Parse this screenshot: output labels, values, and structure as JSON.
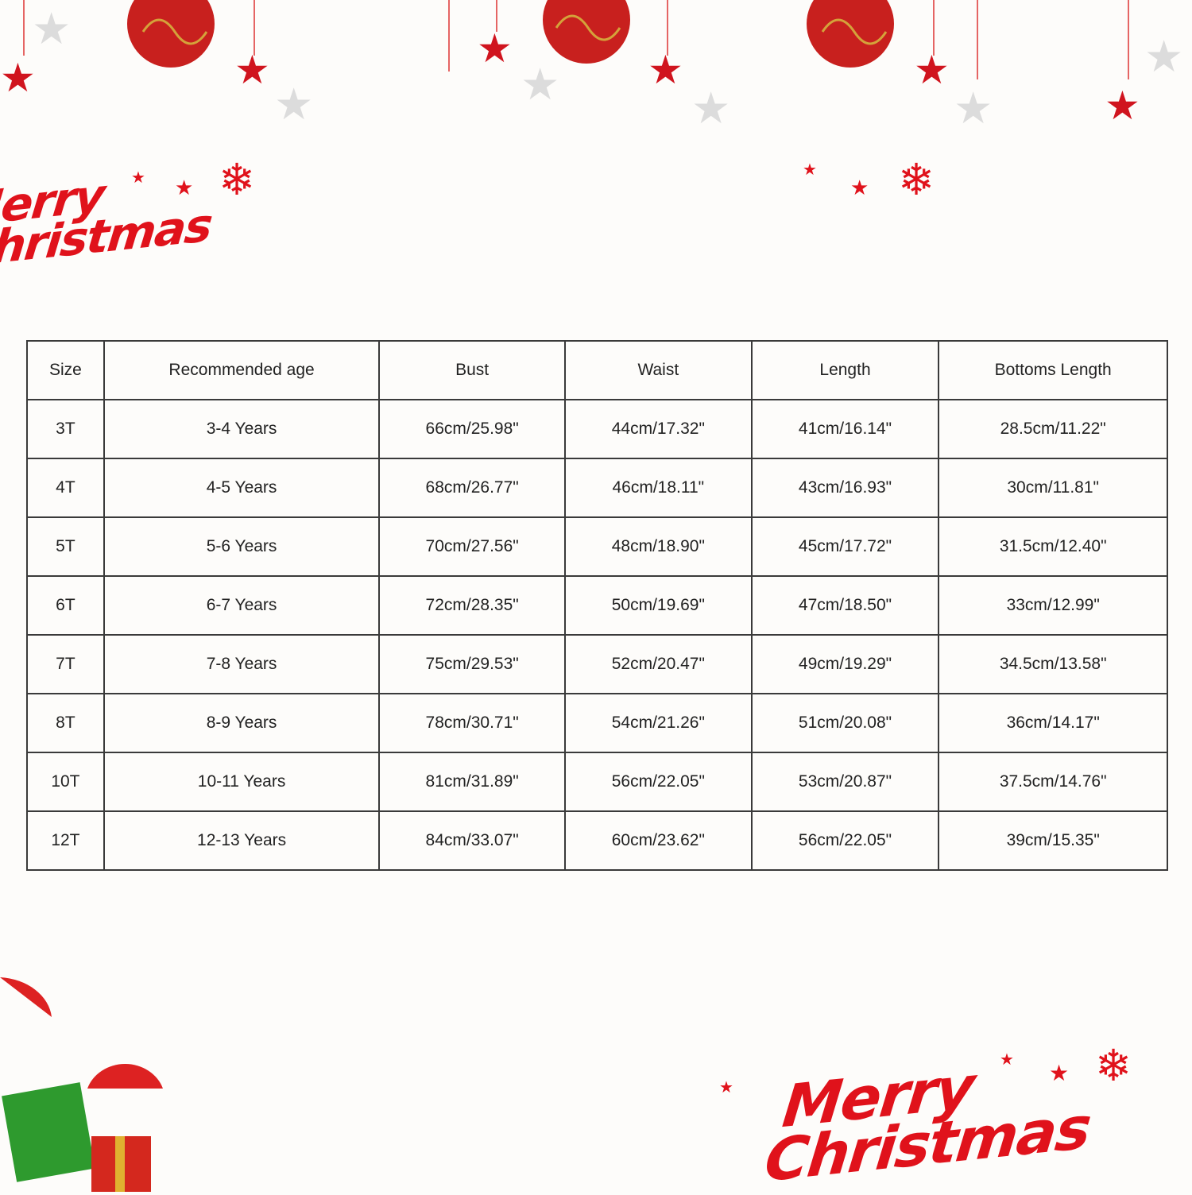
{
  "greetings": {
    "top_left": [
      "Merry",
      "Christmas"
    ],
    "bottom_right": [
      "Merry",
      "Christmas"
    ]
  },
  "colors": {
    "accent_red": "#e0121b",
    "ornament_red": "#c8201e",
    "gold": "#d4a23a",
    "border": "#3a3a3a"
  },
  "size_table": {
    "headers": [
      "Size",
      "Recommended age",
      "Bust",
      "Waist",
      "Length",
      "Bottoms Length"
    ],
    "rows": [
      [
        "3T",
        "3-4 Years",
        "66cm/25.98\"",
        "44cm/17.32\"",
        "41cm/16.14\"",
        "28.5cm/11.22\""
      ],
      [
        "4T",
        "4-5 Years",
        "68cm/26.77\"",
        "46cm/18.11\"",
        "43cm/16.93\"",
        "30cm/11.81\""
      ],
      [
        "5T",
        "5-6 Years",
        "70cm/27.56\"",
        "48cm/18.90\"",
        "45cm/17.72\"",
        "31.5cm/12.40\""
      ],
      [
        "6T",
        "6-7 Years",
        "72cm/28.35\"",
        "50cm/19.69\"",
        "47cm/18.50\"",
        "33cm/12.99\""
      ],
      [
        "7T",
        "7-8 Years",
        "75cm/29.53\"",
        "52cm/20.47\"",
        "49cm/19.29\"",
        "34.5cm/13.58\""
      ],
      [
        "8T",
        "8-9 Years",
        "78cm/30.71\"",
        "54cm/21.26\"",
        "51cm/20.08\"",
        "36cm/14.17\""
      ],
      [
        "10T",
        "10-11 Years",
        "81cm/31.89\"",
        "56cm/22.05\"",
        "53cm/20.87\"",
        "37.5cm/14.76\""
      ],
      [
        "12T",
        "12-13 Years",
        "84cm/33.07\"",
        "60cm/23.62\"",
        "56cm/22.05\"",
        "39cm/15.35\""
      ]
    ]
  }
}
